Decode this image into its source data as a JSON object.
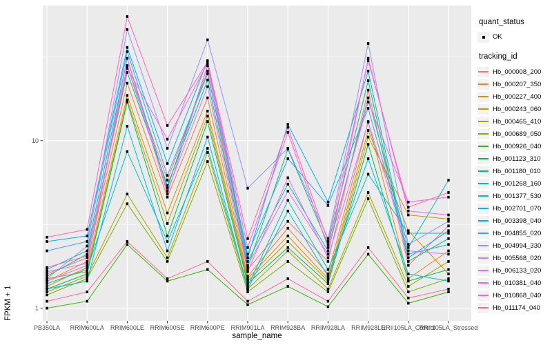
{
  "chart_data": {
    "type": "line",
    "title": "",
    "xlabel": "sample_name",
    "ylabel": "FPKM + 1",
    "y_scale": "log10",
    "ylim": [
      0.84,
      64
    ],
    "y_ticks": [
      {
        "label": "1",
        "value": 1
      },
      {
        "label": "10",
        "value": 10
      }
    ],
    "y_minor_breaks": [
      3.1623,
      31.6228
    ],
    "grid": true,
    "panel_bg": "#EBEBEB",
    "grid_color": "#FFFFFF",
    "marker_color": "#000000",
    "tick_text_color": "#4D4D4D",
    "legend_position": "right",
    "categories": [
      "PB350LA",
      "RRIM600LA",
      "RRIM600LE",
      "RRIM600SE",
      "RRIM600PE",
      "RRIM901LA",
      "RRIM928BA",
      "RRIM928LA",
      "RRIM928LE",
      "RRII105LA_Control",
      "RRII105LA_Stressed"
    ],
    "series": [
      {
        "name": "Hb_000008_200",
        "color": "#F8766D",
        "values": [
          1.6,
          2.0,
          28,
          5.8,
          26,
          1.7,
          3.3,
          1.9,
          20,
          1.8,
          3.1
        ]
      },
      {
        "name": "Hb_000207_350",
        "color": "#EA8331",
        "values": [
          1.45,
          1.9,
          22,
          4.6,
          18,
          1.55,
          3.0,
          1.6,
          13,
          1.5,
          2.2
        ]
      },
      {
        "name": "Hb_000227_400",
        "color": "#D89000",
        "values": [
          1.35,
          1.75,
          18.6,
          3.7,
          15,
          1.5,
          2.7,
          1.5,
          11.5,
          2.9,
          1.6
        ]
      },
      {
        "name": "Hb_000243_060",
        "color": "#C09B00",
        "values": [
          1.5,
          1.65,
          17.5,
          3.2,
          14,
          1.45,
          2.5,
          1.45,
          10.5,
          3.6,
          3.4
        ]
      },
      {
        "name": "Hb_000465_410",
        "color": "#A3A500",
        "values": [
          1.25,
          1.55,
          4.8,
          2.0,
          8.5,
          1.3,
          2.2,
          1.3,
          4.9,
          1.35,
          1.9
        ]
      },
      {
        "name": "Hb_000689_050",
        "color": "#7CAE00",
        "values": [
          1.2,
          1.5,
          4.2,
          1.9,
          7.5,
          1.25,
          1.9,
          1.25,
          4.5,
          1.25,
          1.5
        ]
      },
      {
        "name": "Hb_000926_040",
        "color": "#39B600",
        "values": [
          1.0,
          1.1,
          2.4,
          1.45,
          1.7,
          1.05,
          1.35,
          1.02,
          2.1,
          1.07,
          1.25
        ]
      },
      {
        "name": "Hb_001123_310",
        "color": "#00BB4E",
        "values": [
          1.3,
          1.6,
          17,
          2.7,
          13,
          1.4,
          2.3,
          1.4,
          9.5,
          1.45,
          1.7
        ]
      },
      {
        "name": "Hb_001180_010",
        "color": "#00BF7D",
        "values": [
          1.55,
          2.1,
          25.5,
          5.4,
          23,
          1.75,
          8.9,
          2.4,
          22.8,
          1.9,
          2.6
        ]
      },
      {
        "name": "Hb_001268_160",
        "color": "#00C1A3",
        "values": [
          1.7,
          2.2,
          31,
          5.2,
          28,
          1.9,
          5.5,
          2.2,
          18,
          2.3,
          5.8
        ]
      },
      {
        "name": "Hb_001377_530",
        "color": "#00BFC4",
        "values": [
          1.4,
          1.7,
          8.6,
          2.5,
          9.0,
          1.35,
          4.4,
          1.7,
          6.3,
          2.8,
          2.8
        ]
      },
      {
        "name": "Hb_002701_070",
        "color": "#00BAE0",
        "values": [
          1.3,
          1.45,
          12.2,
          2.2,
          10.5,
          1.3,
          3.8,
          1.55,
          7.8,
          1.6,
          1.45
        ]
      },
      {
        "name": "Hb_003398_040",
        "color": "#00B0F6",
        "values": [
          2.5,
          2.7,
          36,
          7.3,
          30,
          2.0,
          12.5,
          4.3,
          26,
          2.0,
          2.9
        ]
      },
      {
        "name": "Hb_004855_020",
        "color": "#35A2FF",
        "values": [
          2.2,
          2.5,
          34,
          6.2,
          25,
          2.1,
          7.8,
          4.1,
          15.6,
          2.1,
          2.4
        ]
      },
      {
        "name": "Hb_004994_330",
        "color": "#9590FF",
        "values": [
          1.5,
          2.35,
          46,
          9.0,
          40,
          5.2,
          9.0,
          2.6,
          38,
          2.4,
          3.3
        ]
      },
      {
        "name": "Hb_005568_020",
        "color": "#C77CFF",
        "values": [
          1.65,
          1.85,
          28,
          5.0,
          21,
          1.65,
          6.0,
          2.0,
          12.9,
          2.2,
          2.1
        ]
      },
      {
        "name": "Hb_006133_020",
        "color": "#E76BF3",
        "values": [
          1.45,
          1.8,
          31,
          4.8,
          28,
          1.8,
          5.0,
          2.1,
          31,
          3.8,
          3.6
        ]
      },
      {
        "name": "Hb_010381_040",
        "color": "#FA62DB",
        "values": [
          1.75,
          2.05,
          27,
          10.2,
          29,
          2.3,
          11.2,
          2.3,
          17,
          4.3,
          4.6
        ]
      },
      {
        "name": "Hb_010868_040",
        "color": "#FF62BC",
        "values": [
          2.65,
          2.95,
          55,
          12.3,
          29.5,
          2.6,
          12.0,
          2.5,
          30,
          4.0,
          4.9
        ]
      },
      {
        "name": "Hb_011174_040",
        "color": "#FF6A98",
        "values": [
          1.1,
          1.25,
          2.5,
          1.5,
          1.9,
          1.1,
          1.5,
          1.1,
          2.3,
          1.15,
          1.3
        ]
      }
    ],
    "legend": {
      "quant_status_title": "quant_status",
      "ok_label": "OK",
      "ok_marker": "black-point",
      "tracking_title": "tracking_id"
    }
  }
}
